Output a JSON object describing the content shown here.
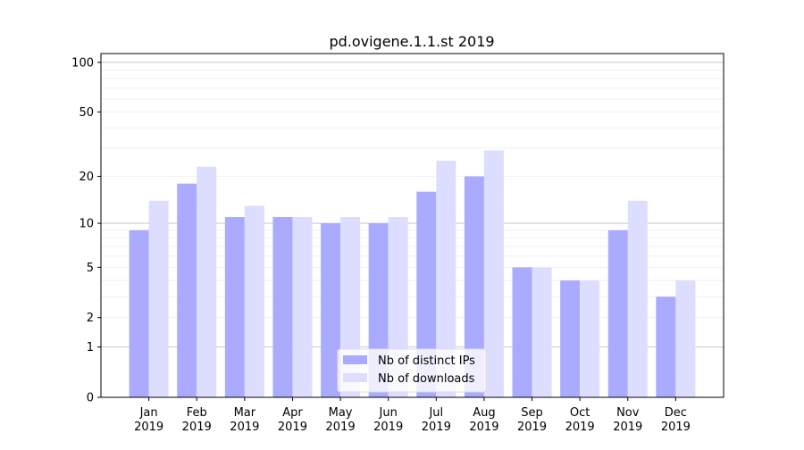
{
  "chart_data": {
    "type": "bar",
    "title": "pd.ovigene.1.1.st 2019",
    "xlabel": "",
    "ylabel": "",
    "yscale": "log(1+y)",
    "ylim": [
      0,
      113
    ],
    "yticks": [
      0,
      1,
      2,
      5,
      10,
      20,
      50,
      100
    ],
    "grid": true,
    "legend_position": "bottom-center",
    "categories": [
      "Jan\n2019",
      "Feb\n2019",
      "Mar\n2019",
      "Apr\n2019",
      "May\n2019",
      "Jun\n2019",
      "Jul\n2019",
      "Aug\n2019",
      "Sep\n2019",
      "Oct\n2019",
      "Nov\n2019",
      "Dec\n2019"
    ],
    "series": [
      {
        "name": "Nb of distinct IPs",
        "color": "#aaaaff",
        "values": [
          9,
          18,
          11,
          11,
          10,
          10,
          16,
          20,
          5,
          4,
          9,
          3
        ]
      },
      {
        "name": "Nb of downloads",
        "color": "#ddddff",
        "values": [
          14,
          23,
          13,
          11,
          11,
          11,
          25,
          29,
          5,
          4,
          14,
          4
        ]
      }
    ]
  }
}
